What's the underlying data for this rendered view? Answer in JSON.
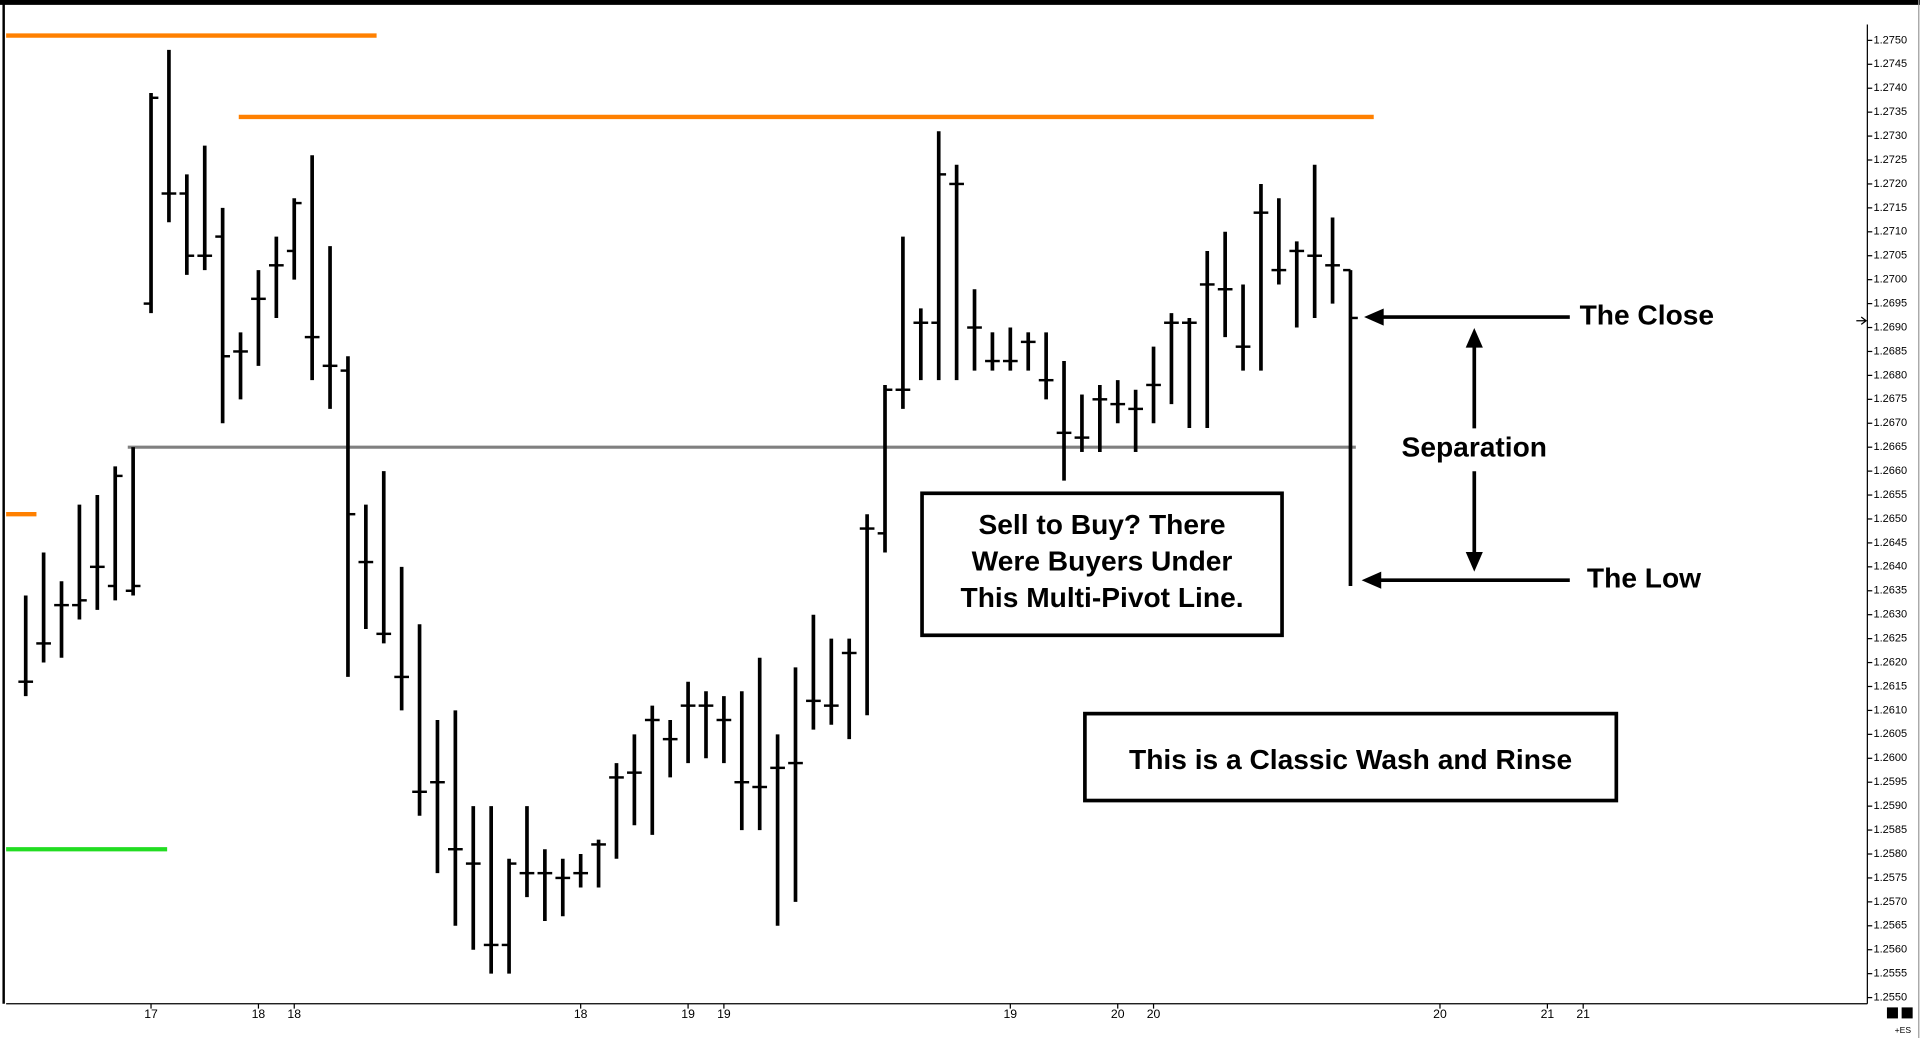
{
  "chart_data": {
    "type": "ohlc",
    "categories": [
      null,
      null,
      null,
      null,
      null,
      null,
      null,
      "17",
      null,
      null,
      null,
      null,
      null,
      "18",
      null,
      "18",
      null,
      null,
      null,
      null,
      null,
      null,
      null,
      null,
      null,
      null,
      null,
      null,
      null,
      null,
      null,
      "18",
      null,
      null,
      null,
      null,
      null,
      "19",
      null,
      "19",
      null,
      null,
      null,
      null,
      null,
      null,
      null,
      null,
      null,
      null,
      null,
      null,
      null,
      null,
      null,
      "19",
      null,
      null,
      null,
      null,
      null,
      "20",
      null,
      "20",
      null,
      null,
      null,
      null,
      null,
      null,
      null,
      null,
      null,
      null,
      null,
      null,
      null,
      null,
      null,
      "20",
      null,
      null,
      null,
      null,
      null,
      "21",
      null,
      "21",
      null,
      null,
      null,
      null,
      null,
      null,
      null,
      null,
      null,
      null,
      null,
      null,
      null,
      null,
      null
    ],
    "open": [
      1.2616,
      1.2624,
      1.2632,
      1.2632,
      1.264,
      1.2636,
      1.2635,
      1.2695,
      1.2718,
      1.2718,
      1.2705,
      1.2709,
      1.2685,
      1.2696,
      1.2703,
      1.2706,
      1.2688,
      1.2682,
      1.2681,
      1.2641,
      1.2626,
      1.2617,
      1.2593,
      1.2595,
      1.2581,
      1.2578,
      1.2561,
      1.2561,
      1.2576,
      1.2576,
      1.2575,
      1.2576,
      1.2582,
      1.2596,
      1.2597,
      1.2608,
      1.2604,
      1.2611,
      1.2611,
      1.2608,
      1.2595,
      1.2594,
      1.2598,
      1.2599,
      1.2612,
      1.2611,
      1.2622,
      1.2648,
      1.2647,
      1.2677,
      1.2691,
      1.2691,
      1.272,
      1.269,
      1.2683,
      1.2683,
      1.2687,
      1.2679,
      1.2668,
      1.2667,
      1.2675,
      1.2674,
      1.2673,
      1.2678,
      1.2691,
      1.2691,
      1.2699,
      1.2698,
      1.2686,
      1.2714,
      1.2702,
      1.2706,
      1.2705,
      1.2703,
      1.2702,
      null,
      null,
      null,
      null,
      null,
      null,
      null,
      null,
      null,
      null,
      null,
      null,
      null,
      null,
      null,
      null,
      null,
      null,
      null,
      null,
      null,
      null,
      null,
      null,
      null,
      null,
      null,
      null
    ],
    "high": [
      1.2634,
      1.2643,
      1.2637,
      1.2653,
      1.2655,
      1.2661,
      1.2665,
      1.2739,
      1.2748,
      1.2722,
      1.2728,
      1.2715,
      1.2689,
      1.2702,
      1.2709,
      1.2717,
      1.2726,
      1.2707,
      1.2684,
      1.2653,
      1.266,
      1.264,
      1.2628,
      1.2608,
      1.261,
      1.259,
      1.259,
      1.2579,
      1.259,
      1.2581,
      1.2579,
      1.258,
      1.2583,
      1.2599,
      1.2605,
      1.2611,
      1.2608,
      1.2616,
      1.2614,
      1.2613,
      1.2614,
      1.2621,
      1.2605,
      1.2619,
      1.263,
      1.2625,
      1.2625,
      1.2651,
      1.2678,
      1.2709,
      1.2694,
      1.2731,
      1.2724,
      1.2698,
      1.2689,
      1.269,
      1.2689,
      1.2689,
      1.2683,
      1.2676,
      1.2678,
      1.2679,
      1.2677,
      1.2686,
      1.2693,
      1.2692,
      1.2706,
      1.271,
      1.2699,
      1.272,
      1.2717,
      1.2708,
      1.2724,
      1.2713,
      1.2702,
      null,
      null,
      null,
      null,
      null,
      null,
      null,
      null,
      null,
      null,
      null,
      null,
      null,
      null,
      null,
      null,
      null,
      null,
      null,
      null,
      null,
      null,
      null,
      null,
      null,
      null,
      null,
      null
    ],
    "low": [
      1.2613,
      1.262,
      1.2621,
      1.2629,
      1.2631,
      1.2633,
      1.2634,
      1.2693,
      1.2712,
      1.2701,
      1.2702,
      1.267,
      1.2675,
      1.2682,
      1.2692,
      1.27,
      1.2679,
      1.2673,
      1.2617,
      1.2627,
      1.2624,
      1.261,
      1.2588,
      1.2576,
      1.2565,
      1.256,
      1.2555,
      1.2555,
      1.2571,
      1.2566,
      1.2567,
      1.2573,
      1.2573,
      1.2579,
      1.2586,
      1.2584,
      1.2596,
      1.2599,
      1.26,
      1.2599,
      1.2585,
      1.2585,
      1.2565,
      1.257,
      1.2606,
      1.2607,
      1.2604,
      1.2609,
      1.2643,
      1.2673,
      1.2679,
      1.2679,
      1.2679,
      1.2681,
      1.2681,
      1.2681,
      1.2681,
      1.2675,
      1.2658,
      1.2664,
      1.2664,
      1.267,
      1.2664,
      1.267,
      1.2674,
      1.2669,
      1.2669,
      1.2688,
      1.2681,
      1.2681,
      1.2699,
      1.269,
      1.2692,
      1.2695,
      1.2636,
      null,
      null,
      null,
      null,
      null,
      null,
      null,
      null,
      null,
      null,
      null,
      null,
      null,
      null,
      null,
      null,
      null,
      null,
      null,
      null,
      null,
      null,
      null,
      null,
      null,
      null,
      null,
      null
    ],
    "close": [
      1.2616,
      1.2624,
      1.2632,
      1.2633,
      1.264,
      1.2659,
      1.2636,
      1.2738,
      1.2718,
      1.2705,
      1.2705,
      1.2684,
      1.2685,
      1.2696,
      1.2703,
      1.2716,
      1.2688,
      1.2682,
      1.2651,
      1.2641,
      1.2626,
      1.2617,
      1.2593,
      1.2595,
      1.2581,
      1.2578,
      1.2561,
      1.2578,
      1.2576,
      1.2576,
      1.2575,
      1.2576,
      1.2582,
      1.2596,
      1.2597,
      1.2608,
      1.2604,
      1.2611,
      1.2611,
      1.2608,
      1.2595,
      1.2594,
      1.2598,
      1.2599,
      1.2612,
      1.2611,
      1.2622,
      1.2648,
      1.2677,
      1.2677,
      1.2691,
      1.2722,
      1.272,
      1.269,
      1.2683,
      1.2683,
      1.2687,
      1.2679,
      1.2668,
      1.2667,
      1.2675,
      1.2674,
      1.2673,
      1.2678,
      1.2691,
      1.2691,
      1.2699,
      1.2698,
      1.2686,
      1.2714,
      1.2702,
      1.2706,
      1.2705,
      1.2703,
      1.2692,
      null,
      null,
      null,
      null,
      null,
      null,
      null,
      null,
      null,
      null,
      null,
      null,
      null,
      null,
      null,
      null,
      null,
      null,
      null,
      null,
      null,
      null,
      null,
      null,
      null,
      null,
      null,
      null
    ],
    "color": "#000000",
    "ylim": [
      1.2549,
      1.2757
    ],
    "yticks": [
      {
        "value": 1.255,
        "label": "1.2550"
      },
      1.2555,
      {
        "value": 1.256,
        "label": "1.2560"
      },
      1.2565,
      {
        "value": 1.257,
        "label": "1.2570"
      },
      1.2575,
      {
        "value": 1.258,
        "label": "1.2580"
      },
      1.2585,
      {
        "value": 1.259,
        "label": "1.2590"
      },
      1.2595,
      {
        "value": 1.26,
        "label": "1.2600"
      },
      1.2605,
      {
        "value": 1.261,
        "label": "1.2610"
      },
      1.2615,
      {
        "value": 1.262,
        "label": "1.2620"
      },
      1.2625,
      {
        "value": 1.263,
        "label": "1.2630"
      },
      1.2635,
      {
        "value": 1.264,
        "label": "1.2640"
      },
      1.2645,
      {
        "value": 1.265,
        "label": "1.2650"
      },
      1.2655,
      {
        "value": 1.266,
        "label": "1.2660"
      },
      1.2665,
      {
        "value": 1.267,
        "label": "1.2670"
      },
      1.2675,
      {
        "value": 1.268,
        "label": "1.2680"
      },
      1.2685,
      {
        "value": 1.269,
        "label": "1.2690"
      },
      1.2695,
      {
        "value": 1.27,
        "label": "1.2700"
      },
      1.2705,
      {
        "value": 1.271,
        "label": "1.2710"
      },
      1.2715,
      {
        "value": 1.272,
        "label": "1.2720"
      },
      1.2725,
      {
        "value": 1.273,
        "label": "1.2730"
      },
      1.2735,
      {
        "value": 1.274,
        "label": "1.2740"
      },
      1.2745,
      {
        "value": 1.275,
        "label": "1.2750"
      }
    ],
    "grid": false,
    "levels": [
      {
        "value": 1.2751,
        "end": 19.6,
        "color": "#ff8000"
      },
      {
        "value": 1.2734,
        "start": 11.9,
        "end": 75.3,
        "color": "#ff8000"
      },
      {
        "value": 1.2665,
        "start": 5.7,
        "end": 74.3,
        "color": "#808080"
      },
      {
        "value": 1.2651,
        "end": 0.6,
        "color": "#ff8000"
      },
      {
        "value": 1.2581,
        "end": 7.9,
        "color": "#22dd22"
      }
    ],
    "annotations": {
      "close_label": "The Close",
      "low_label": "The Low",
      "separation_label": "Separation",
      "box_lines": [
        "Sell to Buy? There",
        "Were Buyers Under",
        "This Multi-Pivot Line."
      ],
      "box2_text": "This is a Classic Wash and Rinse"
    },
    "corner_label": "+ES"
  }
}
